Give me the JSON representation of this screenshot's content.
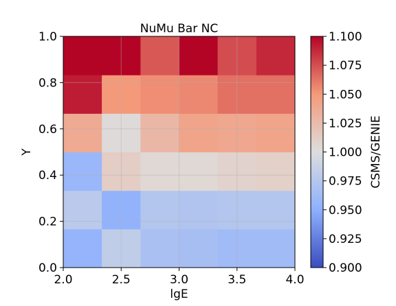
{
  "chart_data": {
    "type": "heatmap",
    "title": "NuMu Bar NC",
    "xlabel": "lgE",
    "ylabel": "Y",
    "colorbar_label": "CSMS/GENIE",
    "x_edges": [
      2.0,
      2.333,
      2.667,
      3.0,
      3.333,
      3.667,
      4.0
    ],
    "y_edges": [
      0.0,
      0.1667,
      0.3333,
      0.5,
      0.6667,
      0.8333,
      1.0
    ],
    "xlim": [
      2.0,
      4.0
    ],
    "ylim": [
      0.0,
      1.0
    ],
    "x_ticks": [
      "2.0",
      "2.5",
      "3.0",
      "3.5",
      "4.0"
    ],
    "y_ticks": [
      "0.0",
      "0.2",
      "0.4",
      "0.6",
      "0.8",
      "1.0"
    ],
    "colorbar_range": [
      0.9,
      1.1
    ],
    "colorbar_ticks": [
      "0.900",
      "0.925",
      "0.950",
      "0.975",
      "1.000",
      "1.025",
      "1.050",
      "1.075",
      "1.100"
    ],
    "colormap": "coolwarm",
    "values": [
      [
        0.955,
        0.982,
        0.968,
        0.966,
        0.962,
        0.962
      ],
      [
        0.978,
        0.953,
        0.974,
        0.972,
        0.974,
        0.974
      ],
      [
        0.958,
        1.012,
        1.004,
        1.004,
        1.008,
        1.01
      ],
      [
        1.038,
        1.002,
        1.028,
        1.042,
        1.04,
        1.042
      ],
      [
        1.092,
        1.05,
        1.054,
        1.056,
        1.064,
        1.064
      ],
      [
        1.1,
        1.1,
        1.072,
        1.1,
        1.076,
        1.088
      ]
    ],
    "grid": true
  }
}
